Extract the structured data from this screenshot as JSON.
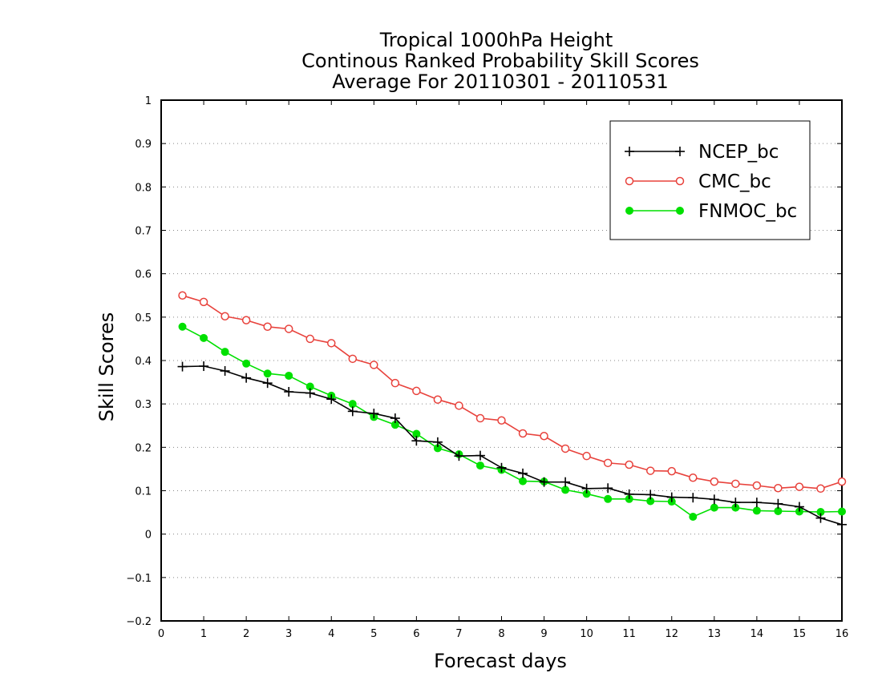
{
  "chart_data": {
    "type": "line",
    "title": [
      "Tropical 1000hPa Height",
      "Continous Ranked Probability Skill Scores",
      "Average For 20110301 - 20110531"
    ],
    "xlabel": "Forecast days",
    "ylabel": "Skill Scores",
    "xlim": [
      0,
      16
    ],
    "ylim": [
      -0.2,
      1
    ],
    "x_ticks": [
      "0",
      "1",
      "2",
      "3",
      "4",
      "5",
      "6",
      "7",
      "8",
      "9",
      "10",
      "11",
      "12",
      "13",
      "14",
      "15",
      "16"
    ],
    "y_ticks": [
      "-0.2",
      "-0.1",
      "0",
      "0.1",
      "0.2",
      "0.3",
      "0.4",
      "0.5",
      "0.6",
      "0.7",
      "0.8",
      "0.9",
      "1"
    ],
    "grid": "horizontal dotted",
    "legend_position": "top-right",
    "x": [
      0.5,
      1,
      1.5,
      2,
      2.5,
      3,
      3.5,
      4,
      4.5,
      5,
      5.5,
      6,
      6.5,
      7,
      7.5,
      8,
      8.5,
      9,
      9.5,
      10,
      10.5,
      11,
      11.5,
      12,
      12.5,
      13,
      13.5,
      14,
      14.5,
      15,
      15.5,
      16
    ],
    "series": [
      {
        "name": "NCEP_bc",
        "color": "#000000",
        "marker": "plus",
        "values": [
          0.386,
          0.387,
          0.376,
          0.36,
          0.348,
          0.328,
          0.325,
          0.311,
          0.283,
          0.278,
          0.267,
          0.215,
          0.212,
          0.18,
          0.181,
          0.153,
          0.14,
          0.12,
          0.12,
          0.105,
          0.106,
          0.092,
          0.091,
          0.085,
          0.084,
          0.08,
          0.073,
          0.073,
          0.07,
          0.063,
          0.037,
          0.022
        ]
      },
      {
        "name": "CMC_bc",
        "color": "#e8423c",
        "marker": "open-circle",
        "values": [
          0.55,
          0.535,
          0.502,
          0.493,
          0.478,
          0.473,
          0.45,
          0.44,
          0.404,
          0.39,
          0.348,
          0.33,
          0.31,
          0.296,
          0.267,
          0.262,
          0.232,
          0.226,
          0.197,
          0.18,
          0.164,
          0.16,
          0.146,
          0.145,
          0.13,
          0.121,
          0.116,
          0.112,
          0.106,
          0.109,
          0.105,
          0.121
        ]
      },
      {
        "name": "FNMOC_bc",
        "color": "#00e000",
        "marker": "filled-circle",
        "values": [
          0.478,
          0.452,
          0.42,
          0.393,
          0.37,
          0.365,
          0.34,
          0.319,
          0.3,
          0.27,
          0.252,
          0.231,
          0.198,
          0.184,
          0.158,
          0.148,
          0.122,
          0.121,
          0.102,
          0.093,
          0.081,
          0.081,
          0.076,
          0.075,
          0.04,
          0.061,
          0.061,
          0.054,
          0.053,
          0.052,
          0.051,
          0.052
        ]
      }
    ]
  }
}
